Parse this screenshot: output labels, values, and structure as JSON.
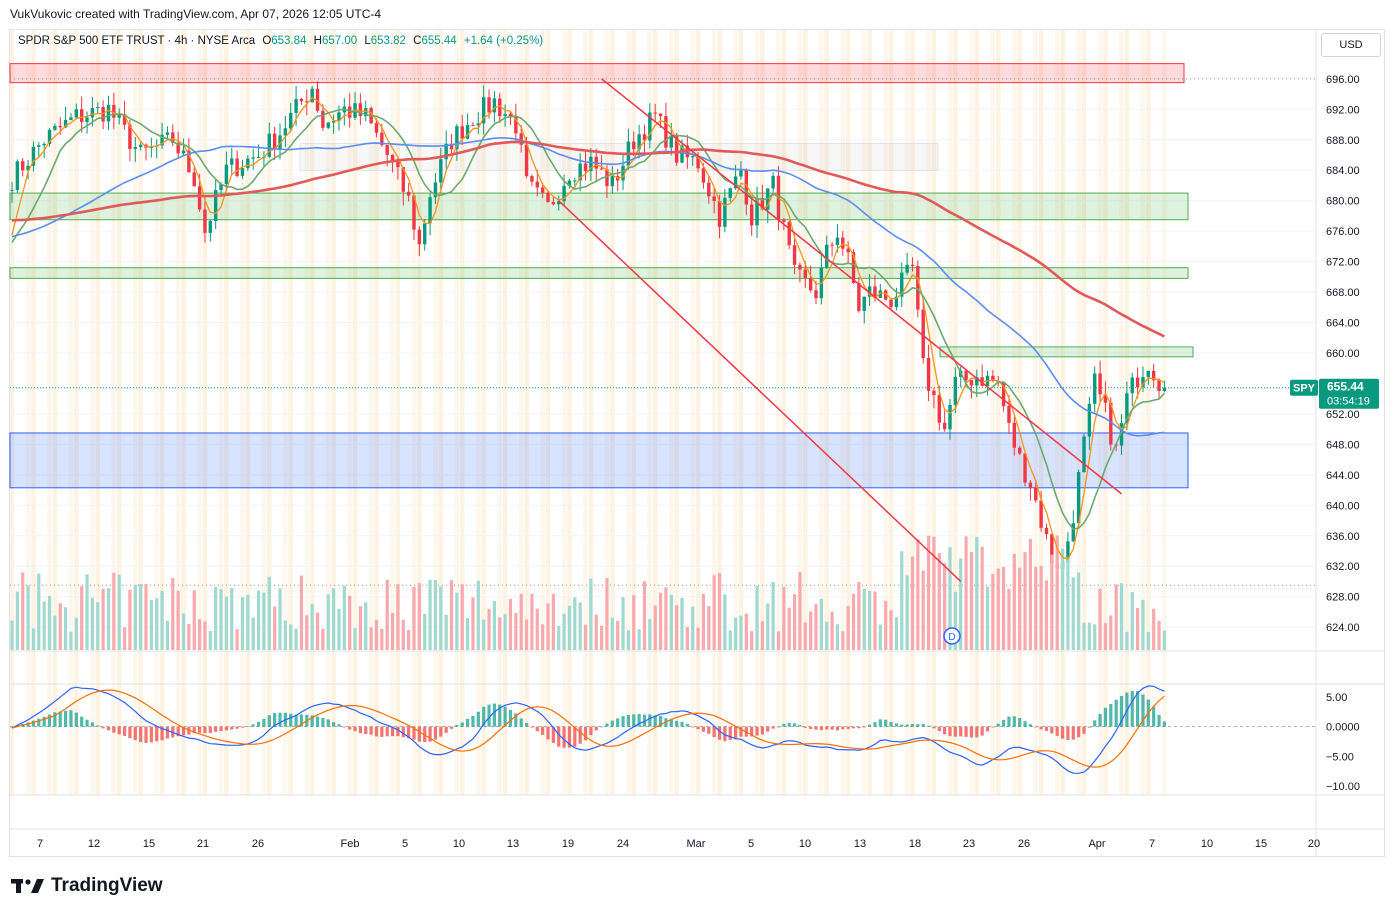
{
  "header": {
    "credit": "VukVukovic created with TradingView.com, Apr 07, 2026 12:05 UTC-4"
  },
  "legend": {
    "symbol": "SPDR S&P 500 ETF TRUST · 4h · NYSE Arca",
    "open_label": "O",
    "open": "653.84",
    "high_label": "H",
    "high": "657.00",
    "low_label": "L",
    "low": "653.82",
    "close_label": "C",
    "close": "655.44",
    "change": "+1.64 (+0.25%)"
  },
  "currency": "USD",
  "price_tag": {
    "ticker": "SPY",
    "price": "655.44",
    "countdown": "03:54:19",
    "color": "#089981"
  },
  "branding": {
    "name": "TradingView"
  },
  "colors": {
    "up": "#089981",
    "down": "#f23645",
    "ma_fast": "#f7931a",
    "ma_mid": "#6aaa6e",
    "ma_100": "#5b8def",
    "ma_200": "#e05a5a",
    "channel": "#f23645",
    "macd": "#2962ff",
    "signal": "#ff6d00"
  },
  "chart_data": {
    "type": "candlestick",
    "price_axis": {
      "ticks": [
        "696.00",
        "692.00",
        "688.00",
        "684.00",
        "680.00",
        "676.00",
        "672.00",
        "668.00",
        "664.00",
        "660.00",
        "652.00",
        "648.00",
        "644.00",
        "640.00",
        "636.00",
        "632.00",
        "628.00",
        "624.00"
      ],
      "range": [
        621,
        699
      ]
    },
    "macd_axis": {
      "ticks": [
        "5.00",
        "0.0000",
        "−5.00",
        "−10.00"
      ],
      "range": [
        -11,
        6.5
      ]
    },
    "date_axis": [
      "7",
      "12",
      "15",
      "21",
      "26",
      "Feb",
      "5",
      "10",
      "13",
      "19",
      "24",
      "Mar",
      "5",
      "10",
      "13",
      "18",
      "23",
      "26",
      "Apr",
      "7",
      "10",
      "15",
      "20"
    ],
    "zones": [
      {
        "name": "resistance-zone",
        "low": 695.5,
        "high": 698,
        "color": "#f23645"
      },
      {
        "name": "supply-zone",
        "low": 677.5,
        "high": 681,
        "color": "#4caf50"
      },
      {
        "name": "thin-zone",
        "low": 669.8,
        "high": 671.2,
        "color": "#4caf50"
      },
      {
        "name": "small-zone",
        "low": 659.5,
        "high": 660.8,
        "color": "#4caf50"
      },
      {
        "name": "demand-zone",
        "low": 642.3,
        "high": 649.5,
        "color": "#2962ff"
      }
    ],
    "channel_upper": {
      "from": {
        "bar": 110,
        "price": 696
      },
      "to": {
        "bar": 207,
        "price": 641.5
      }
    },
    "channel_lower": {
      "from": {
        "bar": 102,
        "price": 680
      },
      "to": {
        "bar": 177,
        "price": 630
      }
    },
    "moving_averages": [
      {
        "name": "MA fast",
        "color": "#f7931a"
      },
      {
        "name": "MA mid",
        "color": "#6aaa6e"
      },
      {
        "name": "MA 100",
        "color": "#5b8def"
      },
      {
        "name": "MA 200",
        "color": "#e05a5a"
      }
    ],
    "event_marker": "D",
    "last_price": 655.44
  }
}
